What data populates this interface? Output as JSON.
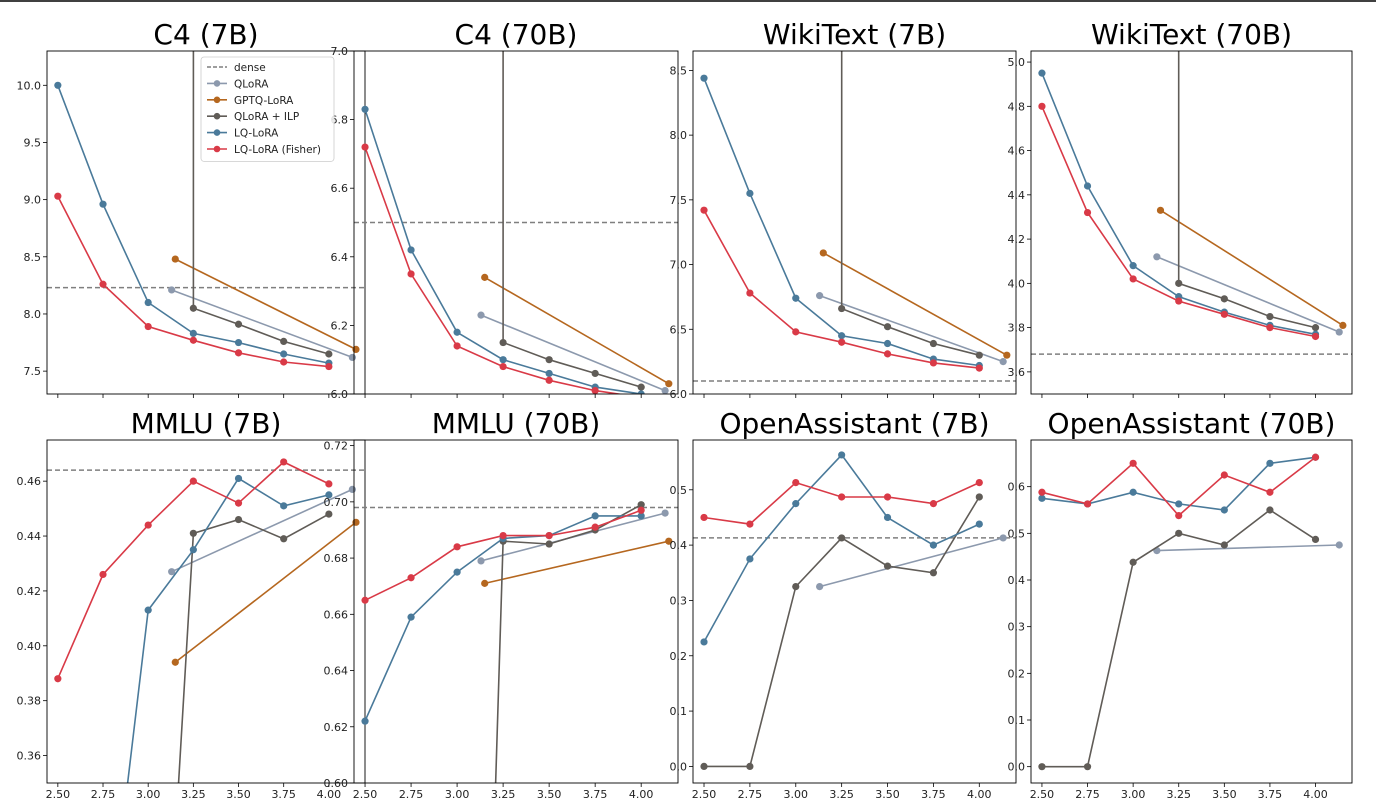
{
  "figure": {
    "colors": {
      "dense": "#7f7f7f",
      "QLoRA": "#8c99ad",
      "GPTQ-LoRA": "#b5671f",
      "QLoRA + ILP": "#605c57",
      "LQ-LoRA": "#4a7a9a",
      "LQ-LoRA (Fisher)": "#d93a47"
    },
    "legend": {
      "placement": "top-right of first panel",
      "entries": [
        {
          "key": "dense",
          "label": "dense",
          "style": "dashed"
        },
        {
          "key": "QLoRA",
          "label": "QLoRA",
          "style": "line-marker"
        },
        {
          "key": "GPTQ-LoRA",
          "label": "GPTQ-LoRA",
          "style": "line-marker"
        },
        {
          "key": "QLoRA + ILP",
          "label": "QLoRA + ILP",
          "style": "line-marker"
        },
        {
          "key": "LQ-LoRA",
          "label": "LQ-LoRA",
          "style": "line-marker"
        },
        {
          "key": "LQ-LoRA (Fisher)",
          "label": "LQ-LoRA (Fisher)",
          "style": "line-marker"
        }
      ]
    }
  },
  "chart_data": [
    {
      "type": "line",
      "title": "C4 (7B)",
      "xlim": [
        2.44,
        4.2
      ],
      "ylim": [
        7.3,
        10.3
      ],
      "xticks": [
        2.5,
        2.75,
        3.0,
        3.25,
        3.5,
        3.75,
        4.0
      ],
      "xtick_labels_shown": false,
      "yticks": [
        7.5,
        8.0,
        8.5,
        9.0,
        9.5,
        10.0
      ],
      "ytick_labels": [
        "7.5",
        "8.0",
        "8.5",
        "9.0",
        "9.5",
        "10.0"
      ],
      "dense": 8.23,
      "grid": false,
      "series": [
        {
          "name": "QLoRA",
          "x": [
            3.13,
            4.13
          ],
          "y": [
            8.21,
            7.62
          ]
        },
        {
          "name": "GPTQ-LoRA",
          "x": [
            3.15,
            4.15
          ],
          "y": [
            8.48,
            7.69
          ]
        },
        {
          "name": "QLoRA + ILP",
          "x": [
            3.25,
            3.25,
            3.5,
            3.75,
            4.0
          ],
          "y": [
            11.0,
            8.05,
            7.91,
            7.76,
            7.65
          ]
        },
        {
          "name": "LQ-LoRA",
          "x": [
            2.5,
            2.75,
            3.0,
            3.25,
            3.5,
            3.75,
            4.0
          ],
          "y": [
            10.0,
            8.96,
            8.1,
            7.83,
            7.75,
            7.65,
            7.57
          ]
        },
        {
          "name": "LQ-LoRA (Fisher)",
          "x": [
            2.5,
            2.75,
            3.0,
            3.25,
            3.5,
            3.75,
            4.0
          ],
          "y": [
            9.03,
            8.26,
            7.89,
            7.77,
            7.66,
            7.58,
            7.54
          ]
        }
      ]
    },
    {
      "type": "line",
      "title": "C4 (70B)",
      "xlim": [
        2.44,
        4.2
      ],
      "ylim": [
        6.0,
        7.0
      ],
      "xticks": [
        2.5,
        2.75,
        3.0,
        3.25,
        3.5,
        3.75,
        4.0
      ],
      "xtick_labels_shown": false,
      "yticks": [
        6.0,
        6.2,
        6.4,
        6.6,
        6.8,
        7.0
      ],
      "ytick_labels": [
        "6.0",
        "6.2",
        "6.4",
        "6.6",
        "6.8",
        "7.0"
      ],
      "dense": 6.5,
      "grid": false,
      "series": [
        {
          "name": "QLoRA",
          "x": [
            3.13,
            4.13
          ],
          "y": [
            6.23,
            6.01
          ]
        },
        {
          "name": "GPTQ-LoRA",
          "x": [
            3.15,
            4.15
          ],
          "y": [
            6.34,
            6.03
          ]
        },
        {
          "name": "QLoRA + ILP",
          "x": [
            3.25,
            3.25,
            3.5,
            3.75,
            4.0
          ],
          "y": [
            7.5,
            6.15,
            6.1,
            6.06,
            6.02
          ]
        },
        {
          "name": "LQ-LoRA",
          "x": [
            2.5,
            2.75,
            3.0,
            3.25,
            3.5,
            3.75,
            4.0
          ],
          "y": [
            6.83,
            6.42,
            6.18,
            6.1,
            6.06,
            6.02,
            6.0
          ]
        },
        {
          "name": "LQ-LoRA (Fisher)",
          "x": [
            2.5,
            2.75,
            3.0,
            3.25,
            3.5,
            3.75,
            4.0
          ],
          "y": [
            6.72,
            6.35,
            6.14,
            6.08,
            6.04,
            6.01,
            5.99
          ]
        }
      ]
    },
    {
      "type": "line",
      "title": "WikiText (7B)",
      "xlim": [
        2.44,
        4.2
      ],
      "ylim": [
        6.0,
        8.65
      ],
      "xticks": [
        2.5,
        2.75,
        3.0,
        3.25,
        3.5,
        3.75,
        4.0
      ],
      "xtick_labels_shown": false,
      "yticks": [
        6.0,
        6.5,
        7.0,
        7.5,
        8.0,
        8.5
      ],
      "ytick_labels": [
        "6.0",
        "6.5",
        "7.0",
        "7.5",
        "8.0",
        "8.5"
      ],
      "dense": 6.1,
      "grid": false,
      "series": [
        {
          "name": "QLoRA",
          "x": [
            3.13,
            4.13
          ],
          "y": [
            6.76,
            6.25
          ]
        },
        {
          "name": "GPTQ-LoRA",
          "x": [
            3.15,
            4.15
          ],
          "y": [
            7.09,
            6.3
          ]
        },
        {
          "name": "QLoRA + ILP",
          "x": [
            3.25,
            3.25,
            3.5,
            3.75,
            4.0
          ],
          "y": [
            9.0,
            6.66,
            6.52,
            6.39,
            6.3
          ]
        },
        {
          "name": "LQ-LoRA",
          "x": [
            2.5,
            2.75,
            3.0,
            3.25,
            3.5,
            3.75,
            4.0
          ],
          "y": [
            8.44,
            7.55,
            6.74,
            6.45,
            6.39,
            6.27,
            6.22
          ]
        },
        {
          "name": "LQ-LoRA (Fisher)",
          "x": [
            2.5,
            2.75,
            3.0,
            3.25,
            3.5,
            3.75,
            4.0
          ],
          "y": [
            7.42,
            6.78,
            6.48,
            6.4,
            6.31,
            6.24,
            6.2
          ]
        }
      ]
    },
    {
      "type": "line",
      "title": "WikiText (70B)",
      "xlim": [
        2.44,
        4.2
      ],
      "ylim": [
        3.5,
        5.05
      ],
      "xticks": [
        2.5,
        2.75,
        3.0,
        3.25,
        3.5,
        3.75,
        4.0
      ],
      "xtick_labels_shown": false,
      "yticks": [
        3.6,
        3.8,
        4.0,
        4.2,
        4.4,
        4.6,
        4.8,
        5.0
      ],
      "ytick_labels": [
        "3.6",
        "3.8",
        "4.0",
        "4.2",
        "4.4",
        "4.6",
        "4.8",
        "5.0"
      ],
      "dense": 3.68,
      "grid": false,
      "series": [
        {
          "name": "QLoRA",
          "x": [
            3.13,
            4.13
          ],
          "y": [
            4.12,
            3.78
          ]
        },
        {
          "name": "GPTQ-LoRA",
          "x": [
            3.15,
            4.15
          ],
          "y": [
            4.33,
            3.81
          ]
        },
        {
          "name": "QLoRA + ILP",
          "x": [
            3.25,
            3.25,
            3.5,
            3.75,
            4.0
          ],
          "y": [
            5.5,
            4.0,
            3.93,
            3.85,
            3.8
          ]
        },
        {
          "name": "LQ-LoRA",
          "x": [
            2.5,
            2.75,
            3.0,
            3.25,
            3.5,
            3.75,
            4.0
          ],
          "y": [
            4.95,
            4.44,
            4.08,
            3.94,
            3.87,
            3.81,
            3.77
          ]
        },
        {
          "name": "LQ-LoRA (Fisher)",
          "x": [
            2.5,
            2.75,
            3.0,
            3.25,
            3.5,
            3.75,
            4.0
          ],
          "y": [
            4.8,
            4.32,
            4.02,
            3.92,
            3.86,
            3.8,
            3.76
          ]
        }
      ]
    },
    {
      "type": "line",
      "title": "MMLU (7B)",
      "xlim": [
        2.44,
        4.2
      ],
      "ylim": [
        0.35,
        0.475
      ],
      "xticks": [
        2.5,
        2.75,
        3.0,
        3.25,
        3.5,
        3.75,
        4.0
      ],
      "xtick_labels": [
        "2.50",
        "2.75",
        "3.00",
        "3.25",
        "3.50",
        "3.75",
        "4.00"
      ],
      "yticks": [
        0.36,
        0.38,
        0.4,
        0.42,
        0.44,
        0.46
      ],
      "ytick_labels": [
        "0.36",
        "0.38",
        "0.40",
        "0.42",
        "0.44",
        "0.46"
      ],
      "dense": 0.464,
      "grid": false,
      "series": [
        {
          "name": "QLoRA",
          "x": [
            3.13,
            4.13
          ],
          "y": [
            0.427,
            0.457
          ]
        },
        {
          "name": "GPTQ-LoRA",
          "x": [
            3.15,
            4.15
          ],
          "y": [
            0.394,
            0.445
          ]
        },
        {
          "name": "QLoRA + ILP",
          "x": [
            3.15,
            3.25,
            3.5,
            3.75,
            4.0
          ],
          "y": [
            0.33,
            0.441,
            0.446,
            0.439,
            0.448
          ]
        },
        {
          "name": "LQ-LoRA",
          "x": [
            2.85,
            3.0,
            3.25,
            3.5,
            3.75,
            4.0
          ],
          "y": [
            0.33,
            0.413,
            0.435,
            0.461,
            0.451,
            0.455
          ]
        },
        {
          "name": "LQ-LoRA (Fisher)",
          "x": [
            2.5,
            2.75,
            3.0,
            3.25,
            3.5,
            3.75,
            4.0
          ],
          "y": [
            0.388,
            0.426,
            0.444,
            0.46,
            0.452,
            0.467,
            0.459
          ]
        }
      ]
    },
    {
      "type": "line",
      "title": "MMLU (70B)",
      "xlim": [
        2.44,
        4.2
      ],
      "ylim": [
        0.6,
        0.722
      ],
      "xticks": [
        2.5,
        2.75,
        3.0,
        3.25,
        3.5,
        3.75,
        4.0
      ],
      "xtick_labels": [
        "2.50",
        "2.75",
        "3.00",
        "3.25",
        "3.50",
        "3.75",
        "4.00"
      ],
      "yticks": [
        0.6,
        0.62,
        0.64,
        0.66,
        0.68,
        0.7,
        0.72
      ],
      "ytick_labels": [
        "0.60",
        "0.62",
        "0.64",
        "0.66",
        "0.68",
        "0.70",
        "0.72"
      ],
      "dense": 0.698,
      "grid": false,
      "series": [
        {
          "name": "QLoRA",
          "x": [
            3.13,
            4.13
          ],
          "y": [
            0.679,
            0.696
          ]
        },
        {
          "name": "GPTQ-LoRA",
          "x": [
            3.15,
            4.15
          ],
          "y": [
            0.671,
            0.686
          ]
        },
        {
          "name": "QLoRA + ILP",
          "x": [
            3.2,
            3.25,
            3.5,
            3.75,
            4.0
          ],
          "y": [
            0.58,
            0.686,
            0.685,
            0.69,
            0.699
          ]
        },
        {
          "name": "LQ-LoRA",
          "x": [
            2.5,
            2.75,
            3.0,
            3.25,
            3.5,
            3.75,
            4.0
          ],
          "y": [
            0.622,
            0.659,
            0.675,
            0.687,
            0.688,
            0.695,
            0.695
          ]
        },
        {
          "name": "LQ-LoRA (Fisher)",
          "x": [
            2.5,
            2.75,
            3.0,
            3.25,
            3.5,
            3.75,
            4.0
          ],
          "y": [
            0.665,
            0.673,
            0.684,
            0.688,
            0.688,
            0.691,
            0.697
          ]
        }
      ]
    },
    {
      "type": "line",
      "title": "OpenAssistant (7B)",
      "xlim": [
        2.44,
        4.2
      ],
      "ylim": [
        -0.03,
        0.59
      ],
      "xticks": [
        2.5,
        2.75,
        3.0,
        3.25,
        3.5,
        3.75,
        4.0
      ],
      "xtick_labels": [
        "2.50",
        "2.75",
        "3.00",
        "3.25",
        "3.50",
        "3.75",
        "4.00"
      ],
      "yticks": [
        0.0,
        0.1,
        0.2,
        0.3,
        0.4,
        0.5
      ],
      "ytick_labels": [
        "0.0",
        "0.1",
        "0.2",
        "0.3",
        "0.4",
        "0.5"
      ],
      "dense": 0.413,
      "grid": false,
      "series": [
        {
          "name": "QLoRA",
          "x": [
            3.13,
            4.13
          ],
          "y": [
            0.325,
            0.413
          ]
        },
        {
          "name": "QLoRA + ILP",
          "x": [
            2.5,
            2.75,
            3.0,
            3.25,
            3.5,
            3.75,
            4.0
          ],
          "y": [
            0.0,
            0.0,
            0.325,
            0.413,
            0.362,
            0.35,
            0.487
          ]
        },
        {
          "name": "LQ-LoRA",
          "x": [
            2.5,
            2.75,
            3.0,
            3.25,
            3.5,
            3.75,
            4.0
          ],
          "y": [
            0.225,
            0.375,
            0.475,
            0.563,
            0.45,
            0.4,
            0.438
          ]
        },
        {
          "name": "LQ-LoRA (Fisher)",
          "x": [
            2.5,
            2.75,
            3.0,
            3.25,
            3.5,
            3.75,
            4.0
          ],
          "y": [
            0.45,
            0.438,
            0.513,
            0.487,
            0.487,
            0.475,
            0.513
          ]
        }
      ]
    },
    {
      "type": "line",
      "title": "OpenAssistant (70B)",
      "xlim": [
        2.44,
        4.2
      ],
      "ylim": [
        -0.035,
        0.7
      ],
      "xticks": [
        2.5,
        2.75,
        3.0,
        3.25,
        3.5,
        3.75,
        4.0
      ],
      "xtick_labels": [
        "2.50",
        "2.75",
        "3.00",
        "3.25",
        "3.50",
        "3.75",
        "4.00"
      ],
      "yticks": [
        0.0,
        0.1,
        0.2,
        0.3,
        0.4,
        0.5,
        0.6
      ],
      "ytick_labels": [
        "0.0",
        "0.1",
        "0.2",
        "0.3",
        "0.4",
        "0.5",
        "0.6"
      ],
      "dense": null,
      "grid": false,
      "series": [
        {
          "name": "QLoRA",
          "x": [
            3.13,
            4.13
          ],
          "y": [
            0.463,
            0.475
          ]
        },
        {
          "name": "QLoRA + ILP",
          "x": [
            2.5,
            2.75,
            3.0,
            3.25,
            3.5,
            3.75,
            4.0
          ],
          "y": [
            0.0,
            0.0,
            0.438,
            0.5,
            0.475,
            0.55,
            0.487
          ]
        },
        {
          "name": "LQ-LoRA",
          "x": [
            2.5,
            2.75,
            3.0,
            3.25,
            3.5,
            3.75,
            4.0
          ],
          "y": [
            0.575,
            0.563,
            0.588,
            0.563,
            0.55,
            0.65,
            0.663
          ]
        },
        {
          "name": "LQ-LoRA (Fisher)",
          "x": [
            2.5,
            2.75,
            3.0,
            3.25,
            3.5,
            3.75,
            4.0
          ],
          "y": [
            0.588,
            0.563,
            0.65,
            0.538,
            0.625,
            0.588,
            0.663
          ]
        }
      ]
    }
  ]
}
